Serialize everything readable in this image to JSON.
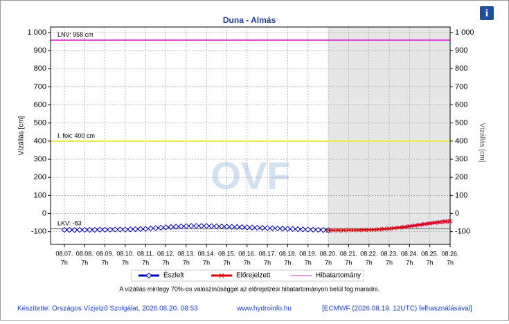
{
  "chart_data": {
    "type": "line",
    "title": "Duna - Almás",
    "ylabel": "Vízállás [cm]",
    "ylim": [
      -170,
      1030
    ],
    "yticks": [
      -100,
      0,
      100,
      200,
      300,
      400,
      500,
      600,
      700,
      800,
      900,
      {
        "value": 1000,
        "label": "1 000"
      }
    ],
    "xlim": [
      6.32,
      26
    ],
    "xticks": [
      {
        "value": 7,
        "label": "08.07."
      },
      {
        "value": 8,
        "label": "08.08."
      },
      {
        "value": 9,
        "label": "08.09."
      },
      {
        "value": 10,
        "label": "08.10."
      },
      {
        "value": 11,
        "label": "08.11."
      },
      {
        "value": 12,
        "label": "08.12."
      },
      {
        "value": 13,
        "label": "08.13."
      },
      {
        "value": 14,
        "label": "08.14."
      },
      {
        "value": 15,
        "label": "08.15."
      },
      {
        "value": 16,
        "label": "08.16."
      },
      {
        "value": 17,
        "label": "08.17."
      },
      {
        "value": 18,
        "label": "08.18."
      },
      {
        "value": 19,
        "label": "08.19."
      },
      {
        "value": 20,
        "label": "08.20."
      },
      {
        "value": 21,
        "label": "08.21."
      },
      {
        "value": 22,
        "label": "08.22."
      },
      {
        "value": 23,
        "label": "08.23."
      },
      {
        "value": 24,
        "label": "08.24."
      },
      {
        "value": 25,
        "label": "08.25."
      },
      {
        "value": 26,
        "label": "08.26."
      }
    ],
    "xtick_hour": "7h",
    "grid": true,
    "watermark": "OVF",
    "reference_lines": [
      {
        "label": "LNV: 958 cm",
        "value": 958,
        "color": "#e040e0"
      },
      {
        "label": "I. fok: 400 cm",
        "value": 400,
        "color": "#e8e840"
      },
      {
        "label": "LKV: -83",
        "value": -83,
        "color": "#a0a0a0"
      }
    ],
    "series": [
      {
        "name": "Észlelt",
        "color": "#0000c0",
        "x": [
          7,
          7.25,
          7.5,
          7.75,
          8,
          8.25,
          8.5,
          8.75,
          9,
          9.25,
          9.5,
          9.75,
          10,
          10.25,
          10.5,
          10.75,
          11,
          11.25,
          11.5,
          11.75,
          12,
          12.25,
          12.5,
          12.75,
          13,
          13.25,
          13.5,
          13.75,
          14,
          14.25,
          14.5,
          14.75,
          15,
          15.25,
          15.5,
          15.75,
          16,
          16.25,
          16.5,
          16.75,
          17,
          17.25,
          17.5,
          17.75,
          18,
          18.25,
          18.5,
          18.75,
          19,
          19.25,
          19.5,
          19.75,
          20
        ],
        "values": [
          -90,
          -90,
          -91,
          -90,
          -90,
          -90,
          -90,
          -89,
          -89,
          -89,
          -88,
          -88,
          -88,
          -87,
          -86,
          -85,
          -84,
          -82,
          -80,
          -78,
          -76,
          -74,
          -72,
          -70,
          -69,
          -68,
          -68,
          -68,
          -68,
          -69,
          -70,
          -71,
          -72,
          -73,
          -74,
          -75,
          -76,
          -77,
          -78,
          -79,
          -80,
          -81,
          -82,
          -83,
          -84,
          -85,
          -86,
          -87,
          -88,
          -89,
          -90,
          -91,
          -92
        ]
      },
      {
        "name": "Előrejelzett",
        "color": "#e00000",
        "x": [
          20,
          20.25,
          20.5,
          20.75,
          21,
          21.25,
          21.5,
          21.75,
          22,
          22.25,
          22.5,
          22.75,
          23,
          23.25,
          23.5,
          23.75,
          24,
          24.25,
          24.5,
          24.75,
          25,
          25.25,
          25.5,
          25.75,
          26
        ],
        "values": [
          -92,
          -92,
          -92,
          -92,
          -91,
          -91,
          -91,
          -90,
          -90,
          -89,
          -87,
          -85,
          -83,
          -80,
          -77,
          -74,
          -70,
          -66,
          -62,
          -58,
          -54,
          -50,
          -47,
          -44,
          -42
        ]
      },
      {
        "name": "Hibatartomány",
        "color": "#d020d0",
        "x": [
          20,
          20.25,
          20.5,
          20.75,
          21,
          21.25,
          21.5,
          21.75,
          22,
          22.25,
          22.5,
          22.75,
          23,
          23.25,
          23.5,
          23.75,
          24,
          24.25,
          24.5,
          24.75,
          25,
          25.25,
          25.5,
          25.75,
          26
        ],
        "upper": [
          -92,
          -92,
          -92,
          -91,
          -90,
          -90,
          -89,
          -88,
          -88,
          -86,
          -84,
          -82,
          -79,
          -76,
          -73,
          -69,
          -65,
          -61,
          -57,
          -52,
          -48,
          -44,
          -40,
          -37,
          -34
        ],
        "lower": [
          -92,
          -92,
          -92,
          -93,
          -92,
          -92,
          -93,
          -92,
          -92,
          -92,
          -90,
          -88,
          -87,
          -84,
          -81,
          -78,
          -75,
          -71,
          -67,
          -64,
          -60,
          -56,
          -54,
          -51,
          -50
        ]
      }
    ],
    "note": "A vízállás mintegy 70%-os valószínűséggel az előrejelzési hibatartományon belül fog maradni.",
    "footer": [
      "Készítette: Országos Vízjelző Szolgálat, 2026.08.20. 08:53",
      "www.hydroinfo.hu",
      "[ECMWF (2026.08.19. 12UTC) felhasználásával]"
    ]
  }
}
